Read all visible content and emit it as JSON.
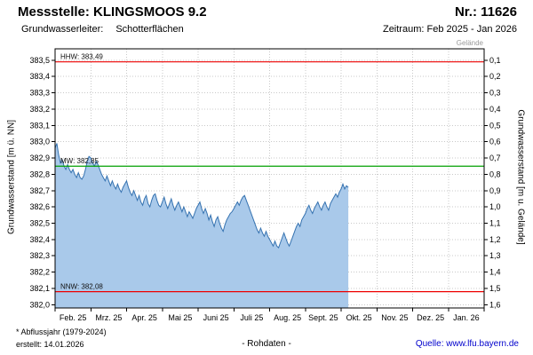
{
  "header": {
    "title": "Messstelle: KLINGSMOOS 9.2",
    "number": "Nr.: 11626",
    "aquifer_label": "Grundwasserleiter:",
    "aquifer_value": "Schotterflächen",
    "period": "Zeitraum: Feb 2025 - Jan 2026"
  },
  "footer": {
    "note": "* Abflussjahr (1979-2024)",
    "created": "erstellt: 14.01.2026",
    "center": "- Rohdaten -",
    "source_label": "Quelle:",
    "source_link": "www.lfu.bayern.de"
  },
  "colors": {
    "ref_red": "#ee0000",
    "ref_green": "#00a000",
    "area_fill": "#a9c9ea",
    "area_stroke": "#3572b0",
    "grid": "#c9c9c9",
    "frame": "#000000",
    "link": "#0000cc"
  },
  "chart_data": {
    "type": "area",
    "title": "",
    "ylabel_left": "Grundwasserstand [m ü. NN]",
    "ylabel_right": "Grundwasserstand [m u. Gelände]",
    "top_note": "Gelände",
    "y_display": [
      381.98,
      383.57
    ],
    "ytick_values": [
      383.5,
      383.4,
      383.3,
      383.2,
      383.1,
      383.0,
      382.9,
      382.8,
      382.7,
      382.6,
      382.5,
      382.4,
      382.3,
      382.2,
      382.1,
      382.0
    ],
    "ytick_labels_left": [
      "383,5",
      "383,4",
      "383,3",
      "383,2",
      "383,1",
      "383,0",
      "382,9",
      "382,8",
      "382,7",
      "382,6",
      "382,5",
      "382,4",
      "382,3",
      "382,2",
      "382,1",
      "382,0"
    ],
    "ytick_labels_right": [
      "0,1",
      "0,2",
      "0,3",
      "0,4",
      "0,5",
      "0,6",
      "0,7",
      "0,8",
      "0,9",
      "1,0",
      "1,1",
      "1,2",
      "1,3",
      "1,4",
      "1,5",
      "1,6"
    ],
    "xlim": [
      0,
      12
    ],
    "x_tick_labels": [
      "Feb. 25",
      "Mrz. 25",
      "Apr. 25",
      "Mai 25",
      "Juni 25",
      "Juli 25",
      "Aug. 25",
      "Sept. 25",
      "Okt. 25",
      "Nov. 25",
      "Dez. 25",
      "Jan. 26"
    ],
    "reference_lines": [
      {
        "name": "HHW",
        "label": "HHW: 383,49",
        "value": 383.49,
        "color": "#ee0000"
      },
      {
        "name": "MW",
        "label": "MW: 382,85",
        "value": 382.85,
        "color": "#00a000"
      },
      {
        "name": "NNW",
        "label": "NNW: 382,08",
        "value": 382.08,
        "color": "#ee0000"
      }
    ],
    "series": [
      {
        "name": "Grundwasserstand Rohdaten",
        "x_start": 0,
        "x_step": 0.05,
        "y": [
          382.96,
          382.99,
          382.92,
          382.87,
          382.89,
          382.85,
          382.83,
          382.86,
          382.83,
          382.81,
          382.83,
          382.8,
          382.78,
          382.81,
          382.78,
          382.77,
          382.79,
          382.83,
          382.88,
          382.91,
          382.9,
          382.87,
          382.85,
          382.88,
          382.86,
          382.83,
          382.8,
          382.78,
          382.76,
          382.79,
          382.76,
          382.73,
          382.76,
          382.73,
          382.71,
          382.74,
          382.71,
          382.69,
          382.72,
          382.74,
          382.76,
          382.72,
          382.69,
          382.67,
          382.7,
          382.67,
          382.64,
          382.67,
          382.63,
          382.61,
          382.65,
          382.67,
          382.62,
          382.6,
          382.64,
          382.67,
          382.68,
          382.64,
          382.61,
          382.6,
          382.63,
          382.66,
          382.62,
          382.59,
          382.62,
          382.65,
          382.61,
          382.58,
          382.61,
          382.63,
          382.6,
          382.57,
          382.6,
          382.57,
          382.54,
          382.57,
          382.55,
          382.53,
          382.56,
          382.59,
          382.61,
          382.63,
          382.59,
          382.56,
          382.59,
          382.56,
          382.52,
          382.55,
          382.51,
          382.48,
          382.52,
          382.54,
          382.5,
          382.47,
          382.45,
          382.49,
          382.52,
          382.54,
          382.56,
          382.57,
          382.59,
          382.61,
          382.63,
          382.61,
          382.64,
          382.66,
          382.67,
          382.64,
          382.61,
          382.58,
          382.55,
          382.52,
          382.49,
          382.46,
          382.44,
          382.47,
          382.44,
          382.42,
          382.45,
          382.42,
          382.4,
          382.38,
          382.36,
          382.39,
          382.36,
          382.35,
          382.38,
          382.41,
          382.44,
          382.41,
          382.38,
          382.36,
          382.39,
          382.42,
          382.45,
          382.48,
          382.5,
          382.48,
          382.52,
          382.54,
          382.56,
          382.59,
          382.61,
          382.58,
          382.56,
          382.59,
          382.61,
          382.63,
          382.6,
          382.58,
          382.61,
          382.63,
          382.6,
          382.58,
          382.62,
          382.64,
          382.66,
          382.68,
          382.66,
          382.69,
          382.71,
          382.74,
          382.71,
          382.73,
          382.72
        ]
      }
    ]
  }
}
